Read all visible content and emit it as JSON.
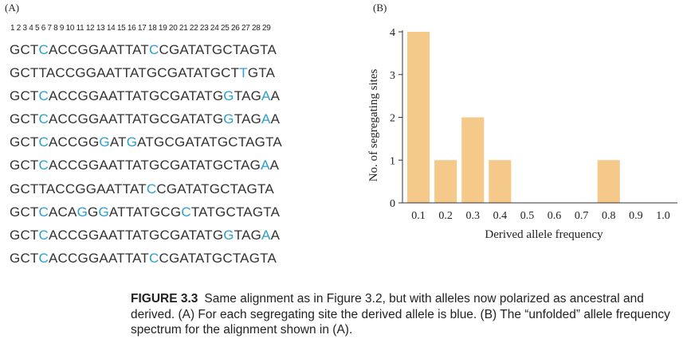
{
  "panel_a_label": "(A)",
  "panel_b_label": "(B)",
  "position_numbers": "1 2 3 4 5 6 7 8 9 10 11 12 13 14 15 16 17 18 19 20 21 22 23 24 25 26 27 28 29",
  "alignment": [
    {
      "sequence": "GCTCACCGGAATTATCCGATATGCTAGTA",
      "derived_positions": [
        4,
        16
      ]
    },
    {
      "sequence": "GCTTACCGGAATTATGCGATATGCTTGTA",
      "derived_positions": [
        26
      ]
    },
    {
      "sequence": "GCTCACCGGAATTATGCGATATGGTAGAA",
      "derived_positions": [
        4,
        24,
        28
      ]
    },
    {
      "sequence": "GCTCACCGGAATTATGCGATATGGTAGAA",
      "derived_positions": [
        4,
        24,
        28
      ]
    },
    {
      "sequence": "GCTCACCGGGATGATGCGATATGCTAGTA",
      "derived_positions": [
        4,
        10,
        13
      ]
    },
    {
      "sequence": "GCTCACCGGAATTATGCGATATGCTAGAA",
      "derived_positions": [
        4,
        28
      ]
    },
    {
      "sequence": "GCTTACCGGAATTATCCGATATGCTAGTA",
      "derived_positions": [
        16
      ]
    },
    {
      "sequence": "GCTCACAGGGATTATGCGCTATGCTAGTA",
      "derived_positions": [
        4,
        8,
        10,
        19
      ]
    },
    {
      "sequence": "GCTCACCGGAATTATGCGATATGGTAGAA",
      "derived_positions": [
        4,
        24,
        28
      ]
    },
    {
      "sequence": "GCTCACCGGAATTATCCGATATGCTAGTA",
      "derived_positions": [
        4,
        16
      ]
    }
  ],
  "colors": {
    "derived_allele": "#2a9fd0",
    "bar": "#f5c98a",
    "text": "#333333"
  },
  "chart_data": {
    "type": "bar",
    "categories": [
      "0.1",
      "0.2",
      "0.3",
      "0.4",
      "0.5",
      "0.6",
      "0.7",
      "0.8",
      "0.9",
      "1.0"
    ],
    "values": [
      4,
      1,
      2,
      1,
      0,
      0,
      0,
      1,
      0,
      0
    ],
    "xlabel": "Derived allele frequency",
    "ylabel": "No. of segregating sites",
    "ylim": [
      0,
      4
    ],
    "yticks": [
      "0",
      "1",
      "2",
      "3",
      "4"
    ],
    "grid": false
  },
  "caption": {
    "figure_label": "FIGURE 3.3",
    "text": "Same alignment as in Figure 3.2, but with alleles now polarized as ancestral and derived. (A) For each segregating site the derived allele is blue. (B) The “unfolded” allele frequency spectrum for the alignment shown in (A)."
  }
}
